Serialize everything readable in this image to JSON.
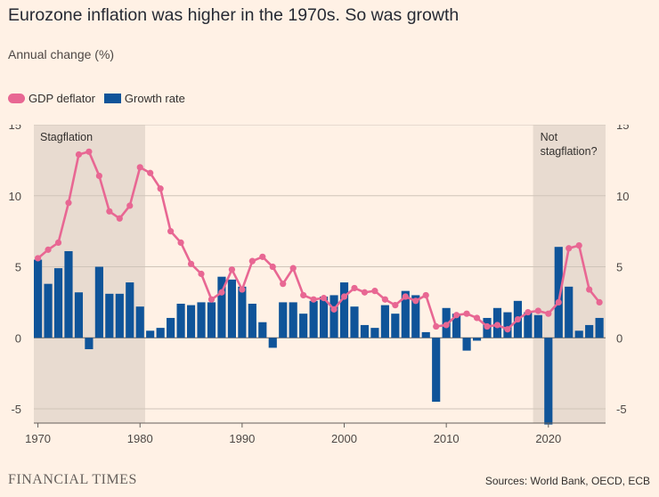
{
  "header": {
    "title": "Eurozone inflation was higher in the 1970s. So was growth",
    "subtitle": "Annual change (%)"
  },
  "legend": {
    "items": [
      {
        "label": "GDP deflator",
        "color": "#E86793"
      },
      {
        "label": "Growth rate",
        "color": "#0F5499"
      }
    ]
  },
  "footer": {
    "brand": "FINANCIAL TIMES",
    "source": "Sources: World Bank, OECD, ECB"
  },
  "chart_data": {
    "type": "bar",
    "ylim": [
      -6,
      15
    ],
    "xlim": [
      1969.6,
      2025.6
    ],
    "yticks": [
      15,
      10,
      5,
      0,
      -5
    ],
    "xticks": [
      1970,
      1980,
      1990,
      2000,
      2010,
      2020
    ],
    "shaded_periods": [
      {
        "start": 1969.6,
        "end": 1980.5,
        "label": "Stagflation"
      },
      {
        "start": 2018.5,
        "end": 2025.6,
        "label": "Not stagflation?"
      }
    ],
    "x": [
      1970,
      1971,
      1972,
      1973,
      1974,
      1975,
      1976,
      1977,
      1978,
      1979,
      1980,
      1981,
      1982,
      1983,
      1984,
      1985,
      1986,
      1987,
      1988,
      1989,
      1990,
      1991,
      1992,
      1993,
      1994,
      1995,
      1996,
      1997,
      1998,
      1999,
      2000,
      2001,
      2002,
      2003,
      2004,
      2005,
      2006,
      2007,
      2008,
      2009,
      2010,
      2011,
      2012,
      2013,
      2014,
      2015,
      2016,
      2017,
      2018,
      2019,
      2020,
      2021,
      2022,
      2023,
      2024,
      2025
    ],
    "series": [
      {
        "name": "Growth rate",
        "type": "bar",
        "color": "#0F5499",
        "values": [
          5.5,
          3.8,
          4.9,
          6.1,
          3.2,
          -0.8,
          5.0,
          3.1,
          3.1,
          3.9,
          2.2,
          0.5,
          0.7,
          1.4,
          2.4,
          2.3,
          2.5,
          2.5,
          4.3,
          4.1,
          3.6,
          2.4,
          1.1,
          -0.7,
          2.5,
          2.5,
          1.7,
          2.6,
          2.9,
          3.0,
          3.9,
          2.2,
          0.9,
          0.7,
          2.3,
          1.7,
          3.3,
          3.0,
          0.4,
          -4.5,
          2.1,
          1.7,
          -0.9,
          -0.2,
          1.4,
          2.1,
          1.8,
          2.6,
          1.8,
          1.6,
          -6.1,
          6.4,
          3.6,
          0.5,
          0.9,
          1.4
        ]
      },
      {
        "name": "GDP deflator",
        "type": "line",
        "color": "#E86793",
        "values": [
          5.6,
          6.2,
          6.7,
          9.5,
          12.9,
          13.1,
          11.4,
          8.9,
          8.4,
          9.3,
          12.0,
          11.6,
          10.5,
          7.5,
          6.7,
          5.2,
          4.5,
          2.7,
          3.2,
          4.8,
          3.4,
          5.4,
          5.7,
          5.0,
          3.8,
          4.9,
          3.0,
          2.7,
          2.8,
          2.0,
          2.9,
          3.5,
          3.2,
          3.3,
          2.7,
          2.3,
          2.9,
          2.6,
          3.0,
          0.8,
          0.9,
          1.6,
          1.7,
          1.4,
          0.8,
          0.9,
          0.6,
          1.3,
          1.8,
          1.9,
          1.7,
          2.5,
          6.3,
          6.5,
          3.4,
          2.5
        ]
      }
    ]
  }
}
